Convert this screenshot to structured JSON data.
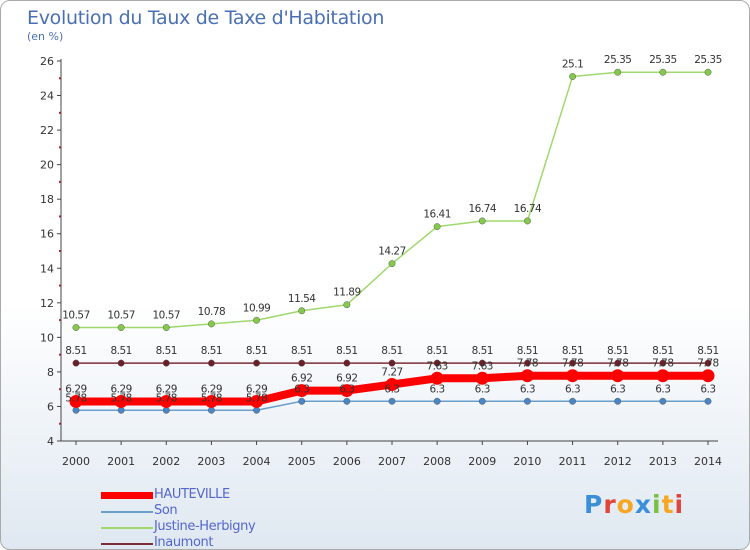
{
  "title": "Evolution du Taux de Taxe d'Habitation",
  "unit_label": "(en %)",
  "logo": {
    "text": "Proxiti",
    "colors": [
      "#3b8fd8",
      "#e0443a",
      "#f5a623",
      "#3b8fd8",
      "#7ac143",
      "#f5a623",
      "#e0443a"
    ]
  },
  "chart_data": {
    "type": "line",
    "x": [
      "2000",
      "2001",
      "2002",
      "2003",
      "2004",
      "2005",
      "2006",
      "2007",
      "2008",
      "2009",
      "2010",
      "2011",
      "2012",
      "2013",
      "2014"
    ],
    "ylim": [
      4,
      26
    ],
    "yticks": [
      "4",
      "6",
      "8",
      "10",
      "12",
      "14",
      "16",
      "18",
      "20",
      "22",
      "24",
      "26"
    ],
    "grid": false,
    "legend_position": "bottom-left",
    "series": [
      {
        "name": "HAUTEVILLE",
        "color": "#ff0000",
        "point_color": "#ff0000",
        "width": 8,
        "values": [
          6.29,
          6.29,
          6.29,
          6.29,
          6.29,
          6.92,
          6.92,
          7.27,
          7.63,
          7.63,
          7.78,
          7.78,
          7.78,
          7.78,
          7.78
        ],
        "labels": [
          "6.29",
          "6.29",
          "6.29",
          "6.29",
          "6.29",
          "6.92",
          "6.92",
          "7.27",
          "7.63",
          "7.63",
          "7.78",
          "7.78",
          "7.78",
          "7.78",
          "7.78"
        ]
      },
      {
        "name": "Son",
        "color": "#6a9fcb",
        "point_color": "#4a86c5",
        "width": 1.5,
        "values": [
          5.78,
          5.78,
          5.78,
          5.78,
          5.78,
          6.3,
          6.3,
          6.3,
          6.3,
          6.3,
          6.3,
          6.3,
          6.3,
          6.3,
          6.3
        ],
        "labels": [
          "5.78",
          "5.78",
          "5.78",
          "5.78",
          "5.78",
          "6.3",
          "6.3",
          "6.3",
          "6.3",
          "6.3",
          "6.3",
          "6.3",
          "6.3",
          "6.3",
          "6.3"
        ]
      },
      {
        "name": "Justine-Herbigny",
        "color": "#9fd86c",
        "point_color": "#85c94a",
        "width": 1.5,
        "values": [
          10.57,
          10.57,
          10.57,
          10.78,
          10.99,
          11.54,
          11.89,
          14.27,
          16.41,
          16.74,
          16.74,
          25.1,
          25.35,
          25.35,
          25.35
        ],
        "labels": [
          "10.57",
          "10.57",
          "10.57",
          "10.78",
          "10.99",
          "11.54",
          "11.89",
          "14.27",
          "16.41",
          "16.74",
          "16.74",
          "25.1",
          "25.35",
          "25.35",
          "25.35"
        ]
      },
      {
        "name": "Inaumont",
        "color": "#7a2e36",
        "point_color": "#6b1f28",
        "width": 1.5,
        "values": [
          8.51,
          8.51,
          8.51,
          8.51,
          8.51,
          8.51,
          8.51,
          8.51,
          8.51,
          8.51,
          8.51,
          8.51,
          8.51,
          8.51,
          8.51
        ],
        "labels": [
          "8.51",
          "8.51",
          "8.51",
          "8.51",
          "8.51",
          "8.51",
          "8.51",
          "8.51",
          "8.51",
          "8.51",
          "8.51",
          "8.51",
          "8.51",
          "8.51",
          "8.51"
        ]
      }
    ]
  }
}
